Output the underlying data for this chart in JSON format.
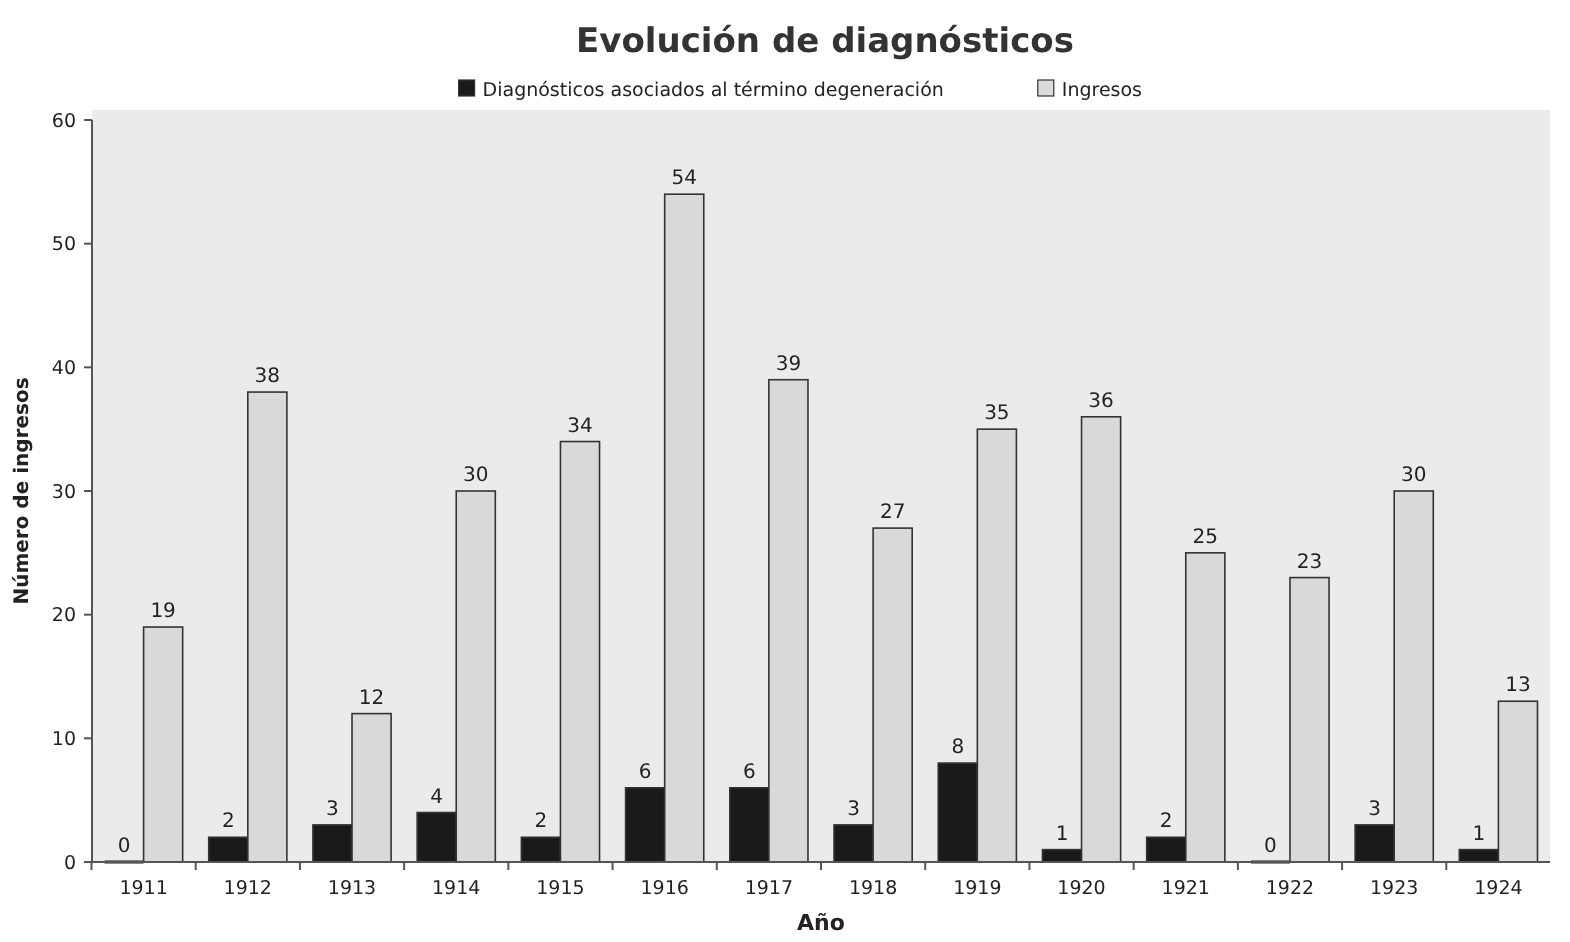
{
  "chart_data": {
    "type": "bar",
    "title": "Evolución de diagnósticos",
    "xlabel": "Año",
    "ylabel": "Número de ingresos",
    "categories": [
      "1911",
      "1912",
      "1913",
      "1914",
      "1915",
      "1916",
      "1917",
      "1918",
      "1919",
      "1920",
      "1921",
      "1922",
      "1923",
      "1924"
    ],
    "series": [
      {
        "name": "Diagnósticos asociados al término degeneración",
        "color": "#1a1a1a",
        "values": [
          0,
          2,
          3,
          4,
          2,
          6,
          6,
          3,
          8,
          1,
          2,
          0,
          3,
          1
        ]
      },
      {
        "name": "Ingresos",
        "color": "#d9d9d9",
        "values": [
          19,
          38,
          12,
          30,
          34,
          54,
          39,
          27,
          35,
          36,
          25,
          23,
          30,
          13
        ]
      }
    ],
    "ylim": [
      0,
      60
    ],
    "yticks": [
      0,
      10,
      20,
      30,
      40,
      50,
      60
    ],
    "grid": false,
    "legend": "top",
    "data_labels": true
  }
}
